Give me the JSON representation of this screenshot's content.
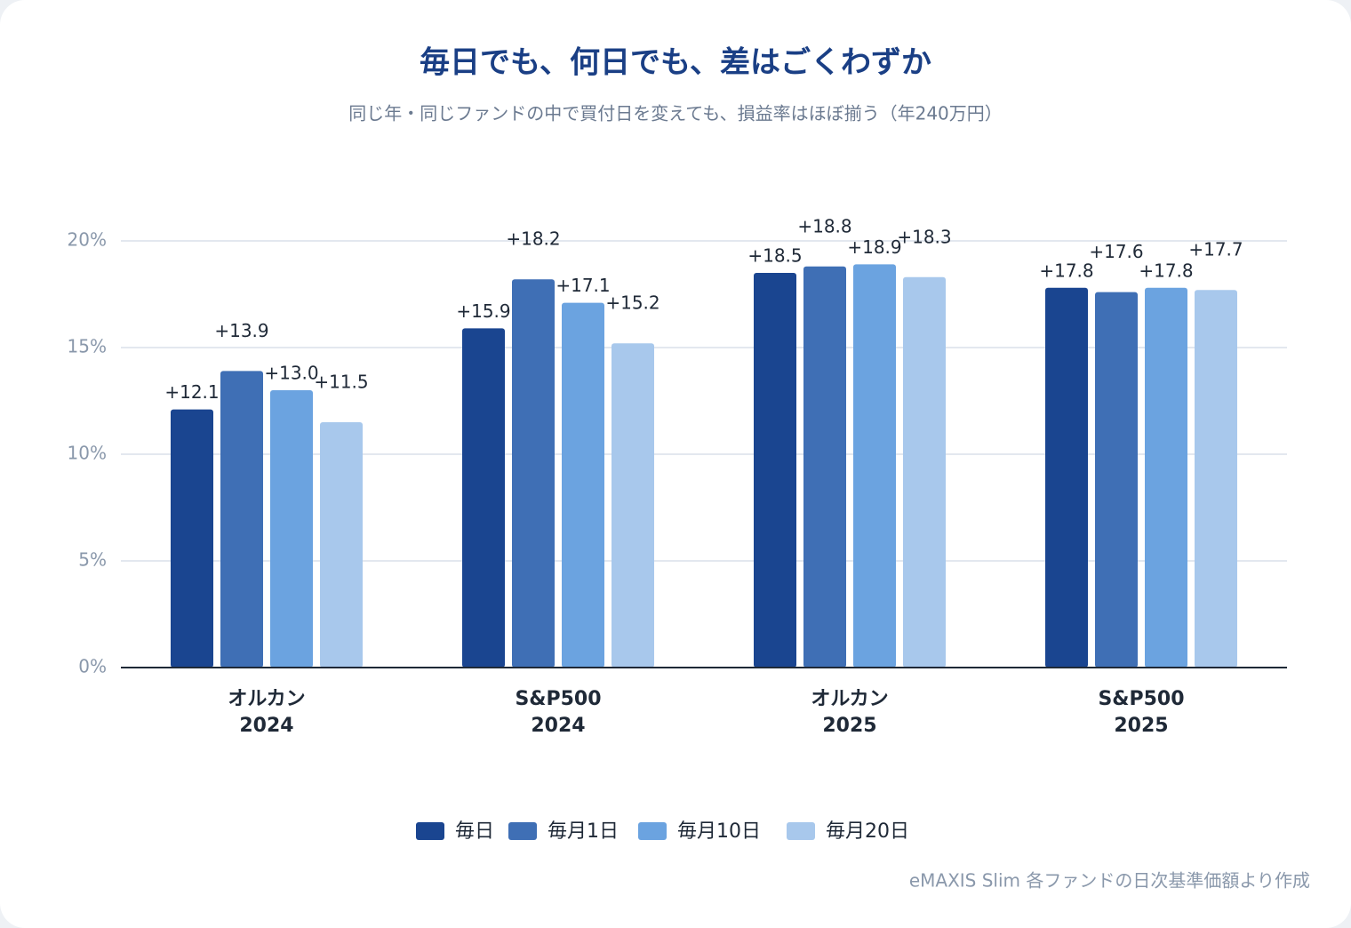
{
  "chart_data": {
    "type": "bar",
    "title": "毎日でも、何日でも、差はごくわずか",
    "subtitle": "同じ年・同じファンドの中で買付日を変えても、損益率はほぼ揃う（年240万円）",
    "categories": [
      [
        "オルカン",
        "2024"
      ],
      [
        "S&P500",
        "2024"
      ],
      [
        "オルカン",
        "2025"
      ],
      [
        "S&P500",
        "2025"
      ]
    ],
    "series": [
      {
        "name": "毎日",
        "color": "#1a4590",
        "values": [
          12.1,
          15.9,
          18.5,
          17.8
        ],
        "value_labels": [
          "+12.1",
          "+15.9",
          "+18.5",
          "+17.8"
        ]
      },
      {
        "name": "毎月1日",
        "color": "#3f6fb5",
        "values": [
          13.9,
          18.2,
          18.8,
          17.6
        ],
        "value_labels": [
          "+13.9",
          "+18.2",
          "+18.8",
          "+17.6"
        ]
      },
      {
        "name": "毎月10日",
        "color": "#6ba3e0",
        "values": [
          13.0,
          17.1,
          18.9,
          17.8
        ],
        "value_labels": [
          "+13.0",
          "+17.1",
          "+18.9",
          "+17.8"
        ]
      },
      {
        "name": "毎月20日",
        "color": "#a8c8ec",
        "values": [
          11.5,
          15.2,
          18.3,
          17.7
        ],
        "value_labels": [
          "+11.5",
          "+15.2",
          "+18.3",
          "+17.7"
        ]
      }
    ],
    "ylim": [
      0,
      20
    ],
    "yticks": [
      {
        "value": 0,
        "label": "0%"
      },
      {
        "value": 5,
        "label": "5%"
      },
      {
        "value": 10,
        "label": "10%"
      },
      {
        "value": 15,
        "label": "15%"
      },
      {
        "value": 20,
        "label": "20%"
      }
    ],
    "grid": true,
    "legend": "bottom",
    "source": "eMAXIS Slim 各ファンドの日次基準価額より作成"
  }
}
